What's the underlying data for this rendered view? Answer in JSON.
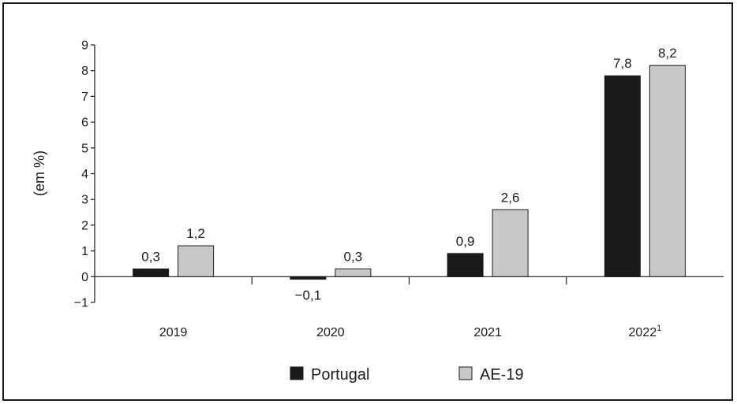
{
  "chart_data": {
    "type": "bar",
    "categories": [
      "2019",
      "2020",
      "2021",
      "2022"
    ],
    "category_superscripts": [
      "",
      "",
      "",
      "1"
    ],
    "series": [
      {
        "name": "Portugal",
        "values": [
          0.3,
          -0.1,
          0.9,
          7.8
        ],
        "labels": [
          "0,3",
          "−0,1",
          "0,9",
          "7,8"
        ],
        "color": "#1a1a1a"
      },
      {
        "name": "AE-19",
        "values": [
          1.2,
          0.3,
          2.6,
          8.2
        ],
        "labels": [
          "1,2",
          "0,3",
          "2,6",
          "8,2"
        ],
        "color": "#c8c8c8"
      }
    ],
    "ylabel": "(em %)",
    "ylim": [
      -1,
      9
    ],
    "yticks": [
      -1,
      0,
      1,
      2,
      3,
      4,
      5,
      6,
      7,
      8,
      9
    ],
    "ytick_labels": [
      "−1",
      "0",
      "1",
      "2",
      "3",
      "4",
      "5",
      "6",
      "7",
      "8",
      "9"
    ],
    "grid": false,
    "legend_position": "bottom-center"
  }
}
